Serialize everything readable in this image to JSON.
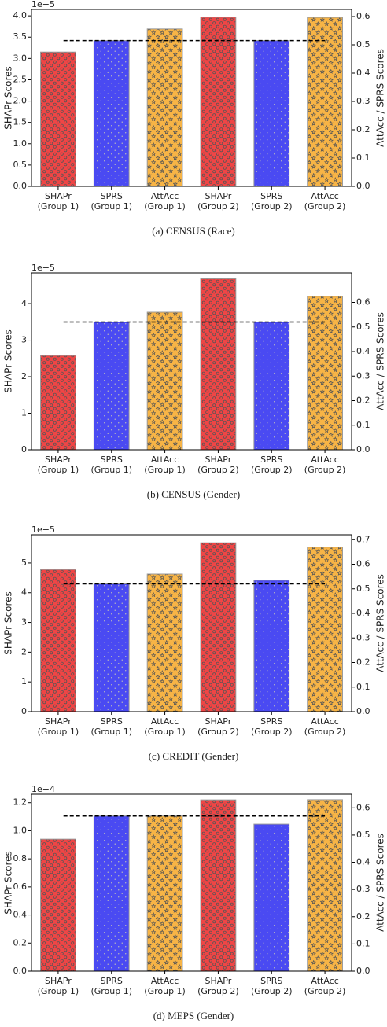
{
  "chart_data": [
    {
      "type": "bar",
      "caption": "(a)  CENSUS (Race)",
      "ylabel": "SHAPr Scores",
      "y2label": "AttAcc / SPRS Scores",
      "offset_label": "1e−5",
      "categories": [
        [
          "SHAPr",
          "(Group 1)"
        ],
        [
          "SPRS",
          "(Group 1)"
        ],
        [
          "AttAcc",
          "(Group 1)"
        ],
        [
          "SHAPr",
          "(Group 2)"
        ],
        [
          "SPRS",
          "(Group 2)"
        ],
        [
          "AttAcc",
          "(Group 2)"
        ]
      ],
      "series": [
        {
          "color": "#f04545",
          "axis": "y",
          "hatch": "o",
          "values": [
            3.15,
            null,
            null,
            3.97,
            null,
            null
          ]
        },
        {
          "color": "#4a4af2",
          "axis": "y2",
          "hatch": ".",
          "values": [
            null,
            0.515,
            null,
            null,
            0.515,
            null
          ]
        },
        {
          "color": "#f7b446",
          "axis": "y2",
          "hatch": "*",
          "values": [
            null,
            null,
            0.556,
            null,
            null,
            0.597
          ]
        }
      ],
      "hline": {
        "value": 0.515,
        "axis": "y2"
      },
      "ylim": [
        0,
        4.15
      ],
      "yticks": [
        {
          "value": 0,
          "label": "0.0"
        },
        0.5,
        {
          "value": 1,
          "label": "1.0"
        },
        1.5,
        {
          "value": 2,
          "label": "2.0"
        },
        2.5,
        {
          "value": 3,
          "label": "3.0"
        },
        3.5,
        {
          "value": 4,
          "label": "4.0"
        }
      ],
      "y2lim": [
        0,
        0.625
      ],
      "y2ticks": [
        {
          "value": 0,
          "label": "0.0"
        },
        0.1,
        0.2,
        0.3,
        0.4,
        0.5,
        0.6
      ]
    },
    {
      "type": "bar",
      "caption": "(b)  CENSUS (Gender)",
      "ylabel": "SHAPr Scores",
      "y2label": "AttAcc / SPRS Scores",
      "offset_label": "1e−5",
      "categories": [
        [
          "SHAPr",
          "(Group 1)"
        ],
        [
          "SPRS",
          "(Group 1)"
        ],
        [
          "AttAcc",
          "(Group 1)"
        ],
        [
          "SHAPr",
          "(Group 2)"
        ],
        [
          "SPRS",
          "(Group 2)"
        ],
        [
          "AttAcc",
          "(Group 2)"
        ]
      ],
      "series": [
        {
          "color": "#f04545",
          "axis": "y",
          "hatch": "o",
          "values": [
            2.58,
            null,
            null,
            4.68,
            null,
            null
          ]
        },
        {
          "color": "#4a4af2",
          "axis": "y2",
          "hatch": ".",
          "values": [
            null,
            0.52,
            null,
            null,
            0.52,
            null
          ]
        },
        {
          "color": "#f7b446",
          "axis": "y2",
          "hatch": "*",
          "values": [
            null,
            null,
            0.56,
            null,
            null,
            0.625
          ]
        }
      ],
      "hline": {
        "value": 0.52,
        "axis": "y2"
      },
      "ylim": [
        0,
        4.84
      ],
      "yticks": [
        0,
        1,
        2,
        3,
        4
      ],
      "y2lim": [
        0,
        0.72
      ],
      "y2ticks": [
        {
          "value": 0,
          "label": "0.0"
        },
        0.1,
        0.2,
        0.3,
        0.4,
        0.5,
        0.6
      ]
    },
    {
      "type": "bar",
      "caption": "(c)  CREDIT (Gender)",
      "ylabel": "SHAPr Scores",
      "y2label": "AttAcc / SPRS Scores",
      "offset_label": "1e−5",
      "categories": [
        [
          "SHAPr",
          "(Group 1)"
        ],
        [
          "SPRS",
          "(Group 1)"
        ],
        [
          "AttAcc",
          "(Group 1)"
        ],
        [
          "SHAPr",
          "(Group 2)"
        ],
        [
          "SPRS",
          "(Group 2)"
        ],
        [
          "AttAcc",
          "(Group 2)"
        ]
      ],
      "series": [
        {
          "color": "#f04545",
          "axis": "y",
          "hatch": "o",
          "values": [
            4.78,
            null,
            null,
            5.68,
            null,
            null
          ]
        },
        {
          "color": "#4a4af2",
          "axis": "y2",
          "hatch": ".",
          "values": [
            null,
            0.52,
            null,
            null,
            0.535,
            null
          ]
        },
        {
          "color": "#f7b446",
          "axis": "y2",
          "hatch": "*",
          "values": [
            null,
            null,
            0.56,
            null,
            null,
            0.67
          ]
        }
      ],
      "hline": {
        "value": 0.52,
        "axis": "y2"
      },
      "ylim": [
        0,
        5.95
      ],
      "yticks": [
        0,
        1,
        2,
        3,
        4,
        5
      ],
      "y2lim": [
        0,
        0.72
      ],
      "y2ticks": [
        {
          "value": 0,
          "label": "0.0"
        },
        0.1,
        0.2,
        0.3,
        0.4,
        0.5,
        0.6,
        0.7
      ]
    },
    {
      "type": "bar",
      "caption": "(d)  MEPS (Gender)",
      "ylabel": "SHAPr Scores",
      "y2label": "AttAcc / SPRS Scores",
      "offset_label": "1e−4",
      "categories": [
        [
          "SHAPr",
          "(Group 1)"
        ],
        [
          "SPRS",
          "(Group 1)"
        ],
        [
          "AttAcc",
          "(Group 1)"
        ],
        [
          "SHAPr",
          "(Group 2)"
        ],
        [
          "SPRS",
          "(Group 2)"
        ],
        [
          "AttAcc",
          "(Group 2)"
        ]
      ],
      "series": [
        {
          "color": "#f04545",
          "axis": "y",
          "hatch": "o",
          "values": [
            0.94,
            null,
            null,
            1.22,
            null,
            null
          ]
        },
        {
          "color": "#4a4af2",
          "axis": "y2",
          "hatch": ".",
          "values": [
            null,
            0.57,
            null,
            null,
            0.54,
            null
          ]
        },
        {
          "color": "#f7b446",
          "axis": "y2",
          "hatch": "*",
          "values": [
            null,
            null,
            0.57,
            null,
            null,
            0.63
          ]
        }
      ],
      "hline": {
        "value": 0.57,
        "axis": "y2"
      },
      "ylim": [
        0,
        1.26
      ],
      "yticks": [
        {
          "value": 0,
          "label": "0.0"
        },
        0.2,
        0.4,
        0.6,
        0.8,
        {
          "value": 1,
          "label": "1.0"
        },
        1.2
      ],
      "y2lim": [
        0,
        0.65
      ],
      "y2ticks": [
        {
          "value": 0,
          "label": "0.0"
        },
        0.1,
        0.2,
        0.3,
        0.4,
        0.5,
        0.6
      ]
    }
  ]
}
